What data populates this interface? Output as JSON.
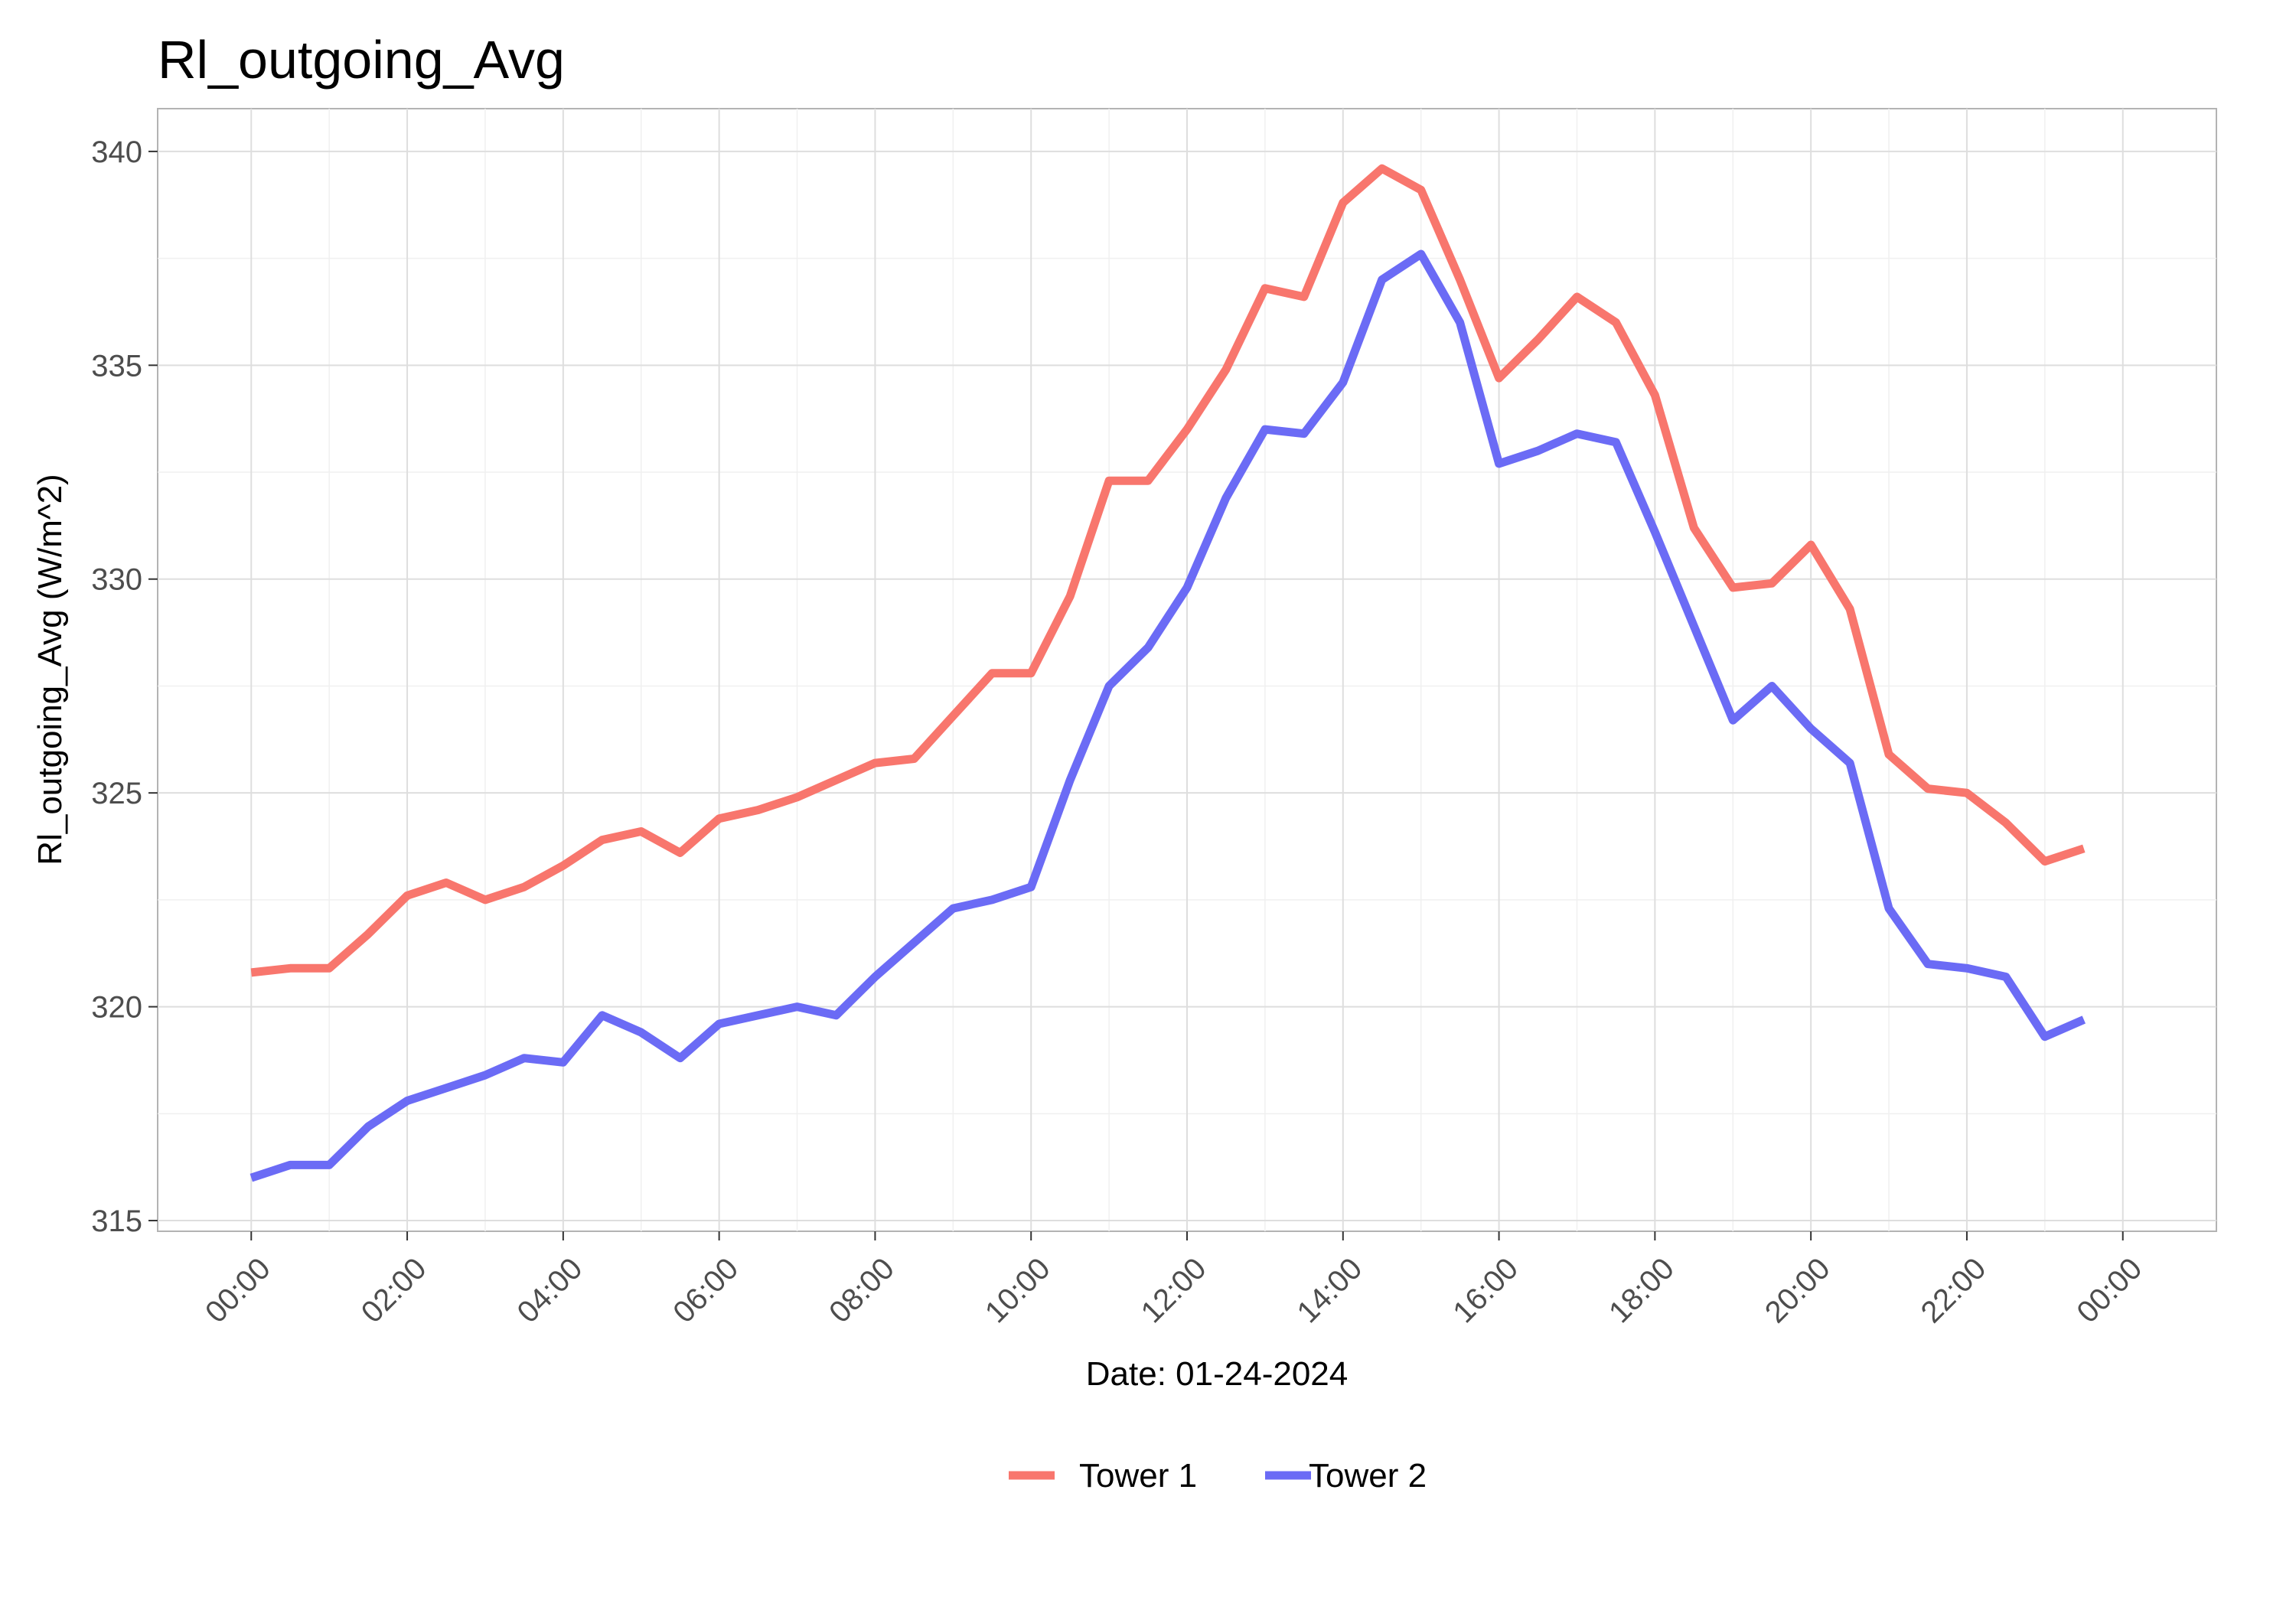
{
  "chart_data": {
    "type": "line",
    "title": "Rl_outgoing_Avg",
    "xlabel": "Date: 01-24-2024",
    "ylabel": "Rl_outgoing_Avg (W/m^2)",
    "xlim": [
      "2024-01-24 00:00",
      "2024-01-25 00:00"
    ],
    "ylim": [
      315,
      340
    ],
    "x_ticks": [
      "00:00",
      "02:00",
      "04:00",
      "06:00",
      "08:00",
      "10:00",
      "12:00",
      "14:00",
      "16:00",
      "18:00",
      "20:00",
      "22:00",
      "00:00"
    ],
    "y_ticks": [
      315,
      320,
      325,
      330,
      335,
      340
    ],
    "grid": true,
    "legend_position": "bottom",
    "x": [
      "00:00",
      "00:30",
      "01:00",
      "01:30",
      "02:00",
      "02:30",
      "03:00",
      "03:30",
      "04:00",
      "04:30",
      "05:00",
      "05:30",
      "06:00",
      "06:30",
      "07:00",
      "07:30",
      "08:00",
      "08:30",
      "09:00",
      "09:30",
      "10:00",
      "10:30",
      "11:00",
      "11:30",
      "12:00",
      "12:30",
      "13:00",
      "13:30",
      "14:00",
      "14:30",
      "15:00",
      "15:30",
      "16:00",
      "16:30",
      "17:00",
      "17:30",
      "18:00",
      "18:30",
      "19:00",
      "19:30",
      "20:00",
      "20:30",
      "21:00",
      "21:30",
      "22:00",
      "22:30",
      "23:00",
      "23:30"
    ],
    "series": [
      {
        "name": "Tower 1",
        "color": "#f8766d",
        "values": [
          320.8,
          320.9,
          320.9,
          321.7,
          322.6,
          322.9,
          322.5,
          322.8,
          323.3,
          323.9,
          324.1,
          323.6,
          324.4,
          324.6,
          324.9,
          325.3,
          325.7,
          325.8,
          326.8,
          327.8,
          327.8,
          329.6,
          332.3,
          332.3,
          333.5,
          334.9,
          336.8,
          336.6,
          338.8,
          339.6,
          339.1,
          337.0,
          334.7,
          335.6,
          336.6,
          336.0,
          334.3,
          331.2,
          329.8,
          329.9,
          330.8,
          329.3,
          325.9,
          325.1,
          325.0,
          324.3,
          323.4,
          323.7
        ]
      },
      {
        "name": "Tower 2",
        "color": "#6b6bf5",
        "values": [
          316.0,
          316.3,
          316.3,
          317.2,
          317.8,
          318.1,
          318.4,
          318.8,
          318.7,
          319.8,
          319.4,
          318.8,
          319.6,
          319.8,
          320.0,
          319.8,
          320.7,
          321.5,
          322.3,
          322.5,
          322.8,
          325.3,
          327.5,
          328.4,
          329.8,
          331.9,
          333.5,
          333.4,
          334.6,
          337.0,
          337.6,
          336.0,
          332.7,
          333.0,
          333.4,
          333.2,
          331.1,
          328.9,
          326.7,
          327.5,
          326.5,
          325.7,
          322.3,
          321.0,
          320.9,
          320.7,
          319.3,
          319.7
        ]
      }
    ]
  }
}
